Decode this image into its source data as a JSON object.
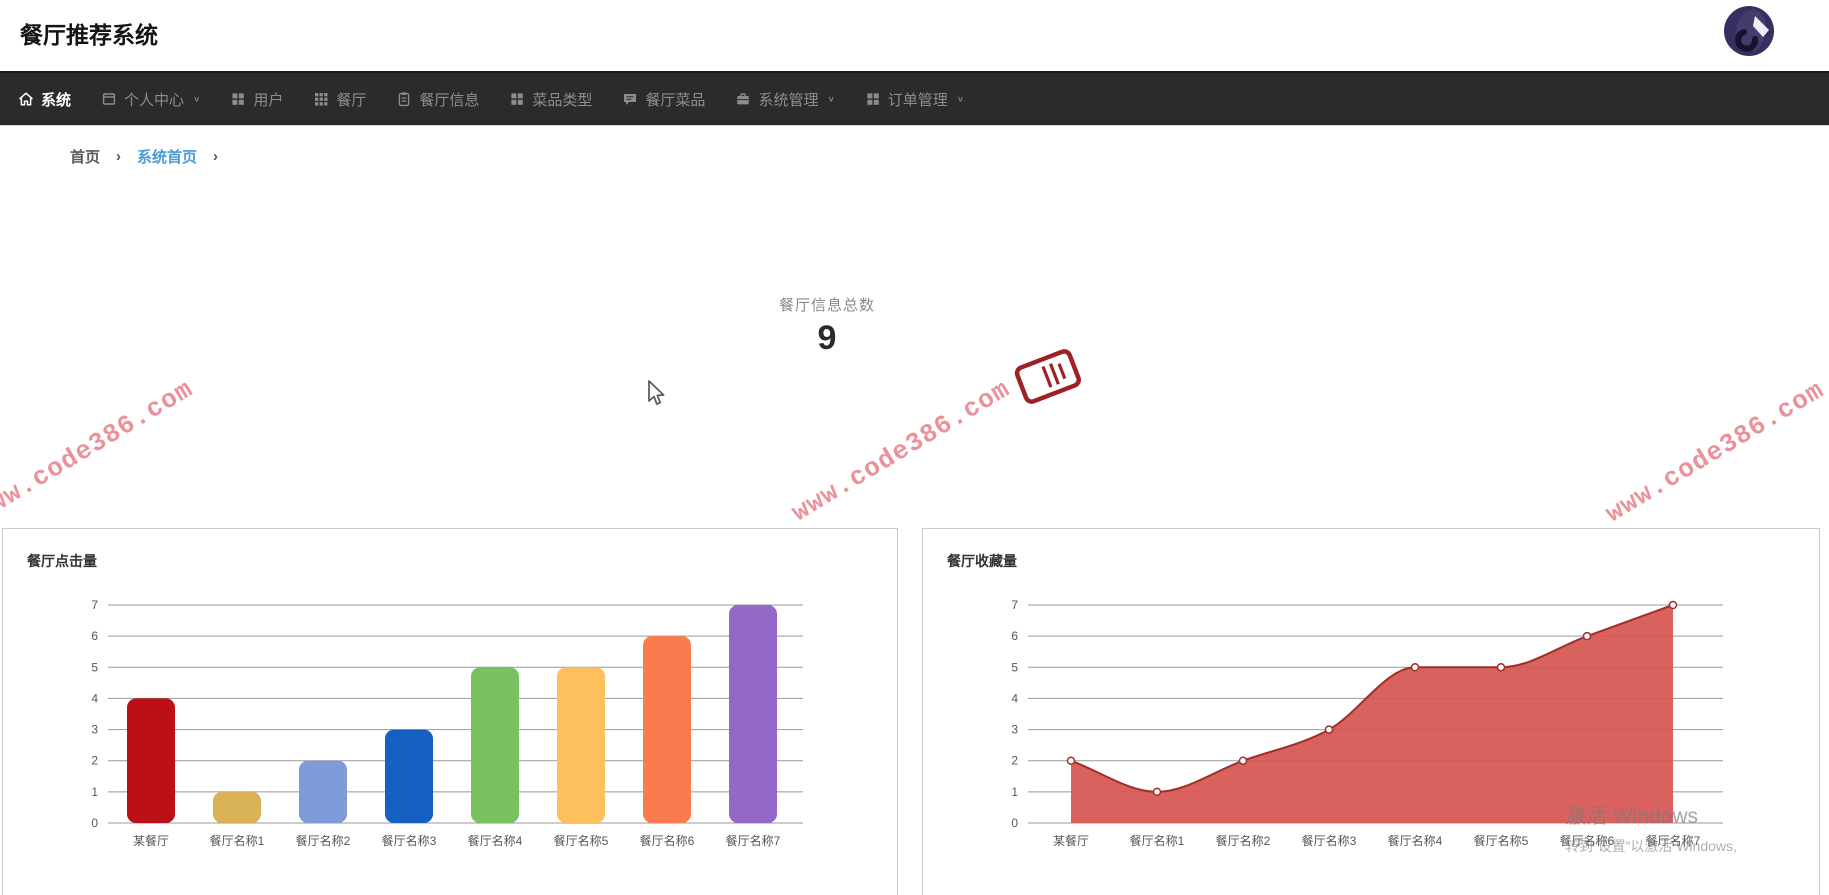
{
  "header": {
    "title": "餐厅推荐系统"
  },
  "navbar": {
    "bg_color": "#2b2b2b",
    "active_color": "#ffffff",
    "inactive_color": "#8d8d8d",
    "items": [
      {
        "label": "系统",
        "icon": "home-icon",
        "active": true,
        "dropdown": false
      },
      {
        "label": "个人中心",
        "icon": "window-icon",
        "active": false,
        "dropdown": true
      },
      {
        "label": "用户",
        "icon": "grid4-icon",
        "active": false,
        "dropdown": false
      },
      {
        "label": "餐厅",
        "icon": "grid9-icon",
        "active": false,
        "dropdown": false
      },
      {
        "label": "餐厅信息",
        "icon": "clipboard-icon",
        "active": false,
        "dropdown": false
      },
      {
        "label": "菜品类型",
        "icon": "grid4-icon",
        "active": false,
        "dropdown": false
      },
      {
        "label": "餐厅菜品",
        "icon": "chat-icon",
        "active": false,
        "dropdown": false
      },
      {
        "label": "系统管理",
        "icon": "briefcase-icon",
        "active": false,
        "dropdown": true
      },
      {
        "label": "订单管理",
        "icon": "grid4-icon",
        "active": false,
        "dropdown": true
      }
    ]
  },
  "breadcrumb": {
    "separator": "›",
    "items": [
      {
        "label": "首页",
        "highlight": false
      },
      {
        "label": "系统首页",
        "highlight": true
      }
    ],
    "highlight_color": "#4a9bd8"
  },
  "stat": {
    "label": "餐厅信息总数",
    "value": "9"
  },
  "watermark": {
    "text": "www.code386.com",
    "color": "#e8838c"
  },
  "windows_activation": {
    "line1": "激活 Windows",
    "line2": "转到“设置”以激活 Windows,"
  },
  "chart_data": [
    {
      "type": "bar",
      "title": "餐厅点击量",
      "categories": [
        "某餐厅",
        "餐厅名称1",
        "餐厅名称2",
        "餐厅名称3",
        "餐厅名称4",
        "餐厅名称5",
        "餐厅名称6",
        "餐厅名称7"
      ],
      "values": [
        4,
        1,
        2,
        3,
        5,
        5,
        6,
        7
      ],
      "bar_colors": [
        "#bb1016",
        "#d9b255",
        "#7d9bd8",
        "#1660c2",
        "#77c160",
        "#fdc05c",
        "#fa7b50",
        "#9468c6"
      ],
      "ylim": [
        0,
        7
      ],
      "y_ticks": [
        0,
        1,
        2,
        3,
        4,
        5,
        6,
        7
      ],
      "grid": true,
      "xlabel": "",
      "ylabel": "",
      "legend": "none"
    },
    {
      "type": "area",
      "title": "餐厅收藏量",
      "categories": [
        "某餐厅",
        "餐厅名称1",
        "餐厅名称2",
        "餐厅名称3",
        "餐厅名称4",
        "餐厅名称5",
        "餐厅名称6",
        "餐厅名称7"
      ],
      "values": [
        2,
        1,
        2,
        3,
        5,
        5,
        6,
        7
      ],
      "fill_color": "#d65550",
      "line_color": "#9e2f2b",
      "ylim": [
        0,
        7
      ],
      "y_ticks": [
        0,
        1,
        2,
        3,
        4,
        5,
        6,
        7
      ],
      "grid": true,
      "xlabel": "",
      "ylabel": "",
      "legend": "none"
    }
  ]
}
